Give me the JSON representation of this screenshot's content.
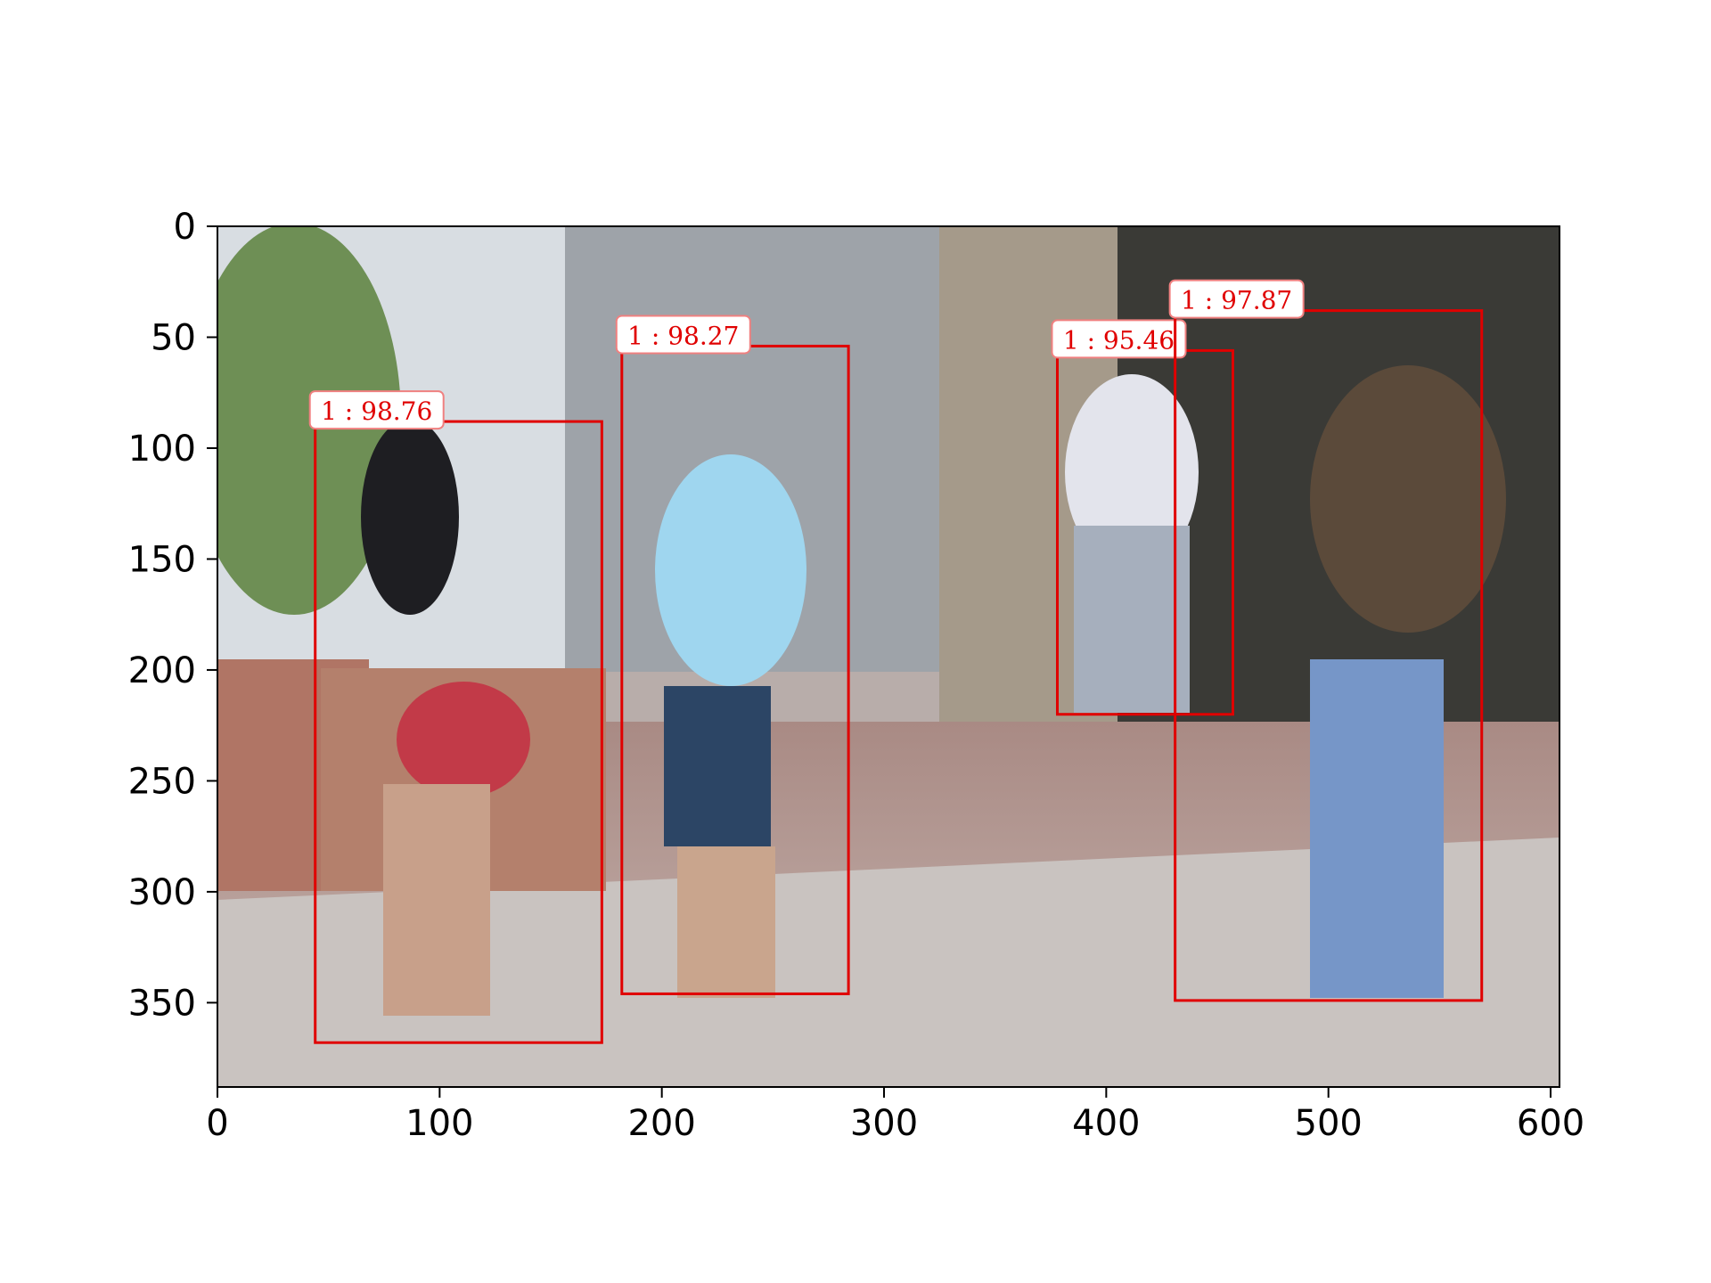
{
  "chart_data": {
    "type": "scatter",
    "description_kind": "image with detection bounding boxes",
    "title": "",
    "xlabel": "",
    "ylabel": "",
    "xlim": [
      0,
      604
    ],
    "ylim": [
      388,
      0
    ],
    "y_inverted": true,
    "grid": false,
    "x_ticks": [
      0,
      100,
      200,
      300,
      400,
      500,
      600
    ],
    "y_ticks": [
      0,
      50,
      100,
      150,
      200,
      250,
      300,
      350
    ],
    "box_color": "#e00000",
    "detections": [
      {
        "label": "1 : 98.76",
        "x0": 44,
        "y0": 88,
        "x1": 173,
        "y1": 368
      },
      {
        "label": "1 : 98.27",
        "x0": 182,
        "y0": 54,
        "x1": 284,
        "y1": 346
      },
      {
        "label": "1 : 95.46",
        "x0": 378,
        "y0": 56,
        "x1": 457,
        "y1": 220
      },
      {
        "label": "1 : 97.87",
        "x0": 431,
        "y0": 38,
        "x1": 569,
        "y1": 349
      }
    ]
  }
}
